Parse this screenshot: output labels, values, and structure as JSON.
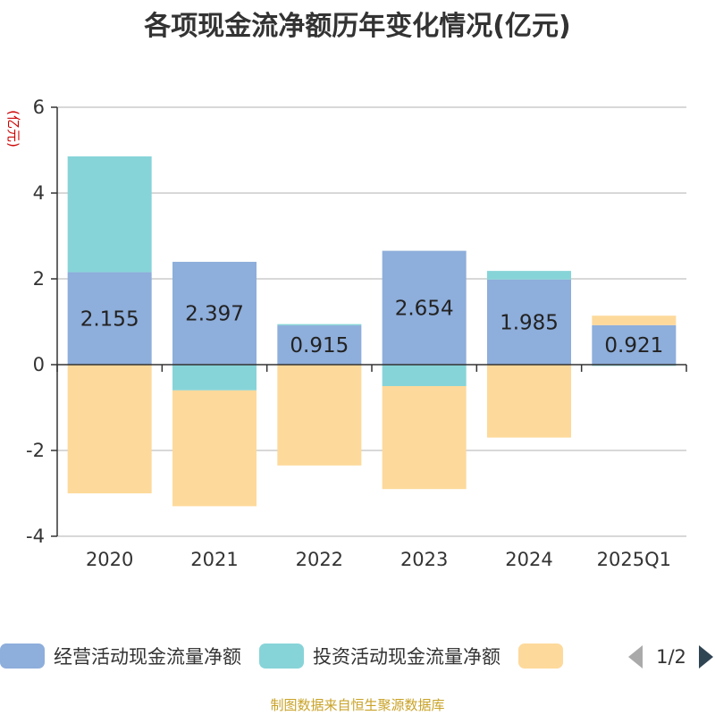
{
  "chart_data": {
    "type": "bar",
    "stacked": true,
    "title": "各项现金流净额历年变化情况(亿元)",
    "ylabel": "(亿元)",
    "xlabel": "",
    "categories": [
      "2020",
      "2021",
      "2022",
      "2023",
      "2024",
      "2025Q1"
    ],
    "ylim": [
      -4,
      6
    ],
    "yticks": [
      -4,
      -2,
      0,
      2,
      4,
      6
    ],
    "grid": true,
    "series": [
      {
        "name": "经营活动现金流量净额",
        "color": "#8eaedb",
        "values": [
          2.155,
          2.397,
          0.915,
          2.654,
          1.985,
          0.921
        ],
        "labels": [
          "2.155",
          "2.397",
          "0.915",
          "2.654",
          "1.985",
          "0.921"
        ]
      },
      {
        "name": "投资活动现金流量净额",
        "color": "#87d4d8",
        "values": [
          2.7,
          -0.6,
          0.03,
          -0.5,
          0.2,
          -0.03
        ]
      },
      {
        "name": "",
        "color": "#fdd99b",
        "values": [
          -3.0,
          -2.7,
          -2.35,
          -2.4,
          -1.7,
          0.22
        ]
      }
    ],
    "legend": {
      "position": "bottom",
      "page": "1/2"
    }
  },
  "footer": {
    "source": "制图数据来自恒生聚源数据库"
  }
}
